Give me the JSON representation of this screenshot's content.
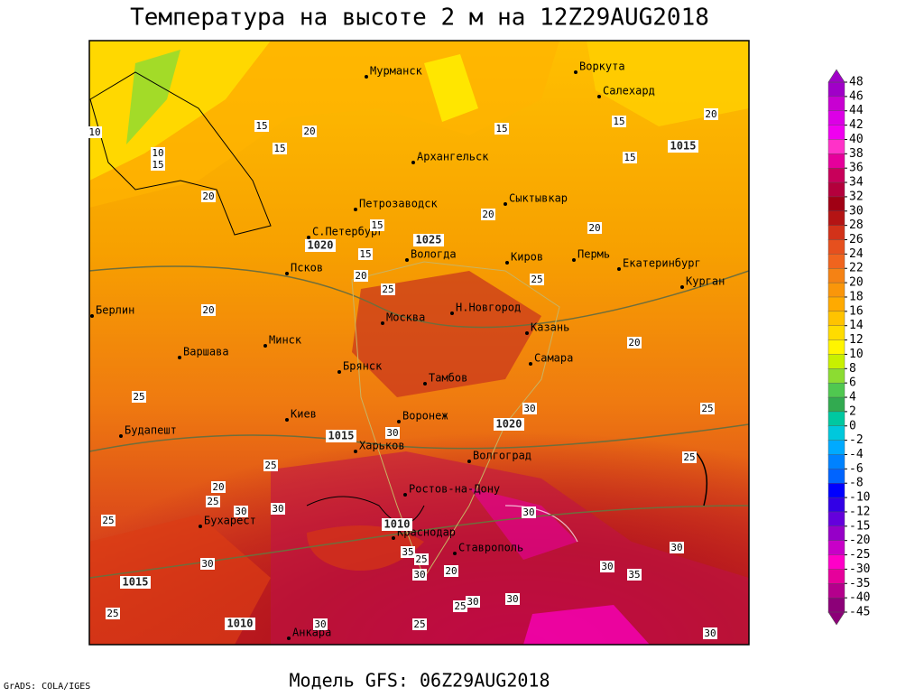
{
  "header": {
    "title": "Температура на высоте 2 м на 12Z29AUG2018"
  },
  "footer": {
    "model": "Модель GFS: 06Z29AUG2018",
    "credit": "GrADS: COLA/IGES"
  },
  "cities": [
    "Мурманск",
    "Воркута",
    "Салехард",
    "Архангельск",
    "Петрозаводск",
    "Сыктывкар",
    "С.Петербург",
    "Вологда",
    "Киров",
    "Пермь",
    "Екатеринбург",
    "Курган",
    "Псков",
    "Москва",
    "Н.Новгород",
    "Казань",
    "Берлин",
    "Варшава",
    "Минск",
    "Брянск",
    "Тамбов",
    "Самара",
    "Киев",
    "Воронеж",
    "Будапешт",
    "Харьков",
    "Волгоград",
    "Ростов-на-Дону",
    "Бухарест",
    "Краснодар",
    "Ставрополь",
    "Анкара"
  ],
  "isotherm_labels": [
    10,
    10,
    15,
    15,
    20,
    15,
    20,
    15,
    15,
    20,
    25,
    20,
    15,
    15,
    20,
    15,
    20,
    25,
    20,
    20,
    25,
    30,
    30,
    25,
    25,
    25,
    20,
    25,
    30,
    30,
    25,
    30,
    30,
    30,
    35,
    25,
    30,
    20,
    30,
    35,
    25,
    30,
    25,
    30,
    30,
    25,
    30
  ],
  "isobar_labels": [
    1025,
    1020,
    1015,
    1020,
    1015,
    1010,
    1015,
    1010
  ],
  "colorbar": {
    "labels": [
      48,
      46,
      44,
      42,
      40,
      38,
      36,
      34,
      32,
      30,
      28,
      26,
      24,
      22,
      20,
      18,
      16,
      14,
      12,
      10,
      8,
      6,
      4,
      2,
      0,
      -2,
      -4,
      -6,
      -8,
      -10,
      -12,
      -15,
      -20,
      -25,
      -30,
      -35,
      -40,
      -45
    ],
    "colors": [
      "#a000c8",
      "#c800d2",
      "#dc00e6",
      "#f000f0",
      "#ff32c8",
      "#e6009b",
      "#c8005a",
      "#b4003c",
      "#a00014",
      "#b41414",
      "#d23219",
      "#e6501e",
      "#f0641e",
      "#f58214",
      "#fa960a",
      "#ffaa00",
      "#ffc300",
      "#ffdc00",
      "#fff500",
      "#c8f000",
      "#8cdc32",
      "#50c850",
      "#32aa50",
      "#00c8a0",
      "#00c8dc",
      "#00aaff",
      "#0082ff",
      "#0064ff",
      "#0000ff",
      "#3200e6",
      "#6400dc",
      "#9600c8",
      "#c800c8",
      "#ff00c8",
      "#e6009b",
      "#b4008c",
      "#8c0078"
    ]
  }
}
